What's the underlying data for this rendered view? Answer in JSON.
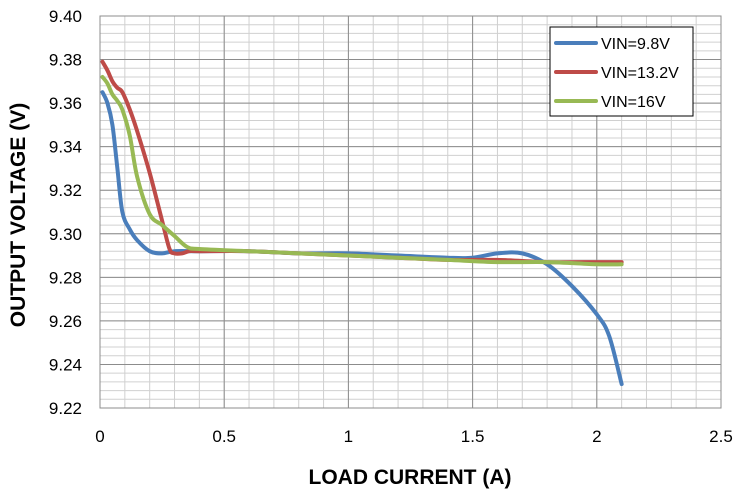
{
  "chart_data": {
    "type": "line",
    "title": "",
    "xlabel": "LOAD CURRENT (A)",
    "ylabel": "OUTPUT VOLTAGE (V)",
    "xlim": [
      0,
      2.5
    ],
    "ylim": [
      9.22,
      9.4
    ],
    "x_ticks": [
      0,
      0.5,
      1,
      1.5,
      2,
      2.5
    ],
    "x_tick_labels": [
      "0",
      "0.5",
      "1",
      "1.5",
      "2",
      "2.5"
    ],
    "y_ticks": [
      9.22,
      9.24,
      9.26,
      9.28,
      9.3,
      9.32,
      9.34,
      9.36,
      9.38,
      9.4
    ],
    "y_tick_labels": [
      "9.22",
      "9.24",
      "9.26",
      "9.28",
      "9.30",
      "9.32",
      "9.34",
      "9.36",
      "9.38",
      "9.40"
    ],
    "x_minor_step": 0.1,
    "y_minor_step": 0.004,
    "grid": true,
    "legend_position": "top-right",
    "series": [
      {
        "name": "VIN=9.8V",
        "color": "#4a7ebb",
        "x": [
          0.01,
          0.03,
          0.05,
          0.07,
          0.09,
          0.12,
          0.15,
          0.2,
          0.25,
          0.3,
          0.4,
          0.6,
          0.8,
          1.0,
          1.2,
          1.4,
          1.5,
          1.6,
          1.7,
          1.8,
          1.9,
          2.0,
          2.05,
          2.1
        ],
        "values": [
          9.365,
          9.36,
          9.35,
          9.33,
          9.31,
          9.302,
          9.297,
          9.292,
          9.291,
          9.292,
          9.292,
          9.292,
          9.291,
          9.291,
          9.29,
          9.289,
          9.289,
          9.291,
          9.291,
          9.286,
          9.276,
          9.263,
          9.253,
          9.231
        ]
      },
      {
        "name": "VIN=13.2V",
        "color": "#be4b48",
        "x": [
          0.01,
          0.03,
          0.05,
          0.07,
          0.09,
          0.12,
          0.15,
          0.2,
          0.25,
          0.28,
          0.3,
          0.33,
          0.36,
          0.4,
          0.6,
          0.8,
          1.0,
          1.2,
          1.4,
          1.6,
          1.8,
          2.0,
          2.1
        ],
        "values": [
          9.379,
          9.375,
          9.37,
          9.367,
          9.365,
          9.357,
          9.347,
          9.328,
          9.306,
          9.293,
          9.291,
          9.291,
          9.292,
          9.292,
          9.292,
          9.291,
          9.29,
          9.289,
          9.288,
          9.288,
          9.287,
          9.287,
          9.287
        ]
      },
      {
        "name": "VIN=16V",
        "color": "#98b954",
        "x": [
          0.01,
          0.03,
          0.05,
          0.07,
          0.09,
          0.12,
          0.15,
          0.2,
          0.25,
          0.3,
          0.35,
          0.4,
          0.6,
          0.8,
          1.0,
          1.2,
          1.4,
          1.6,
          1.8,
          2.0,
          2.1
        ],
        "values": [
          9.372,
          9.369,
          9.364,
          9.361,
          9.357,
          9.345,
          9.326,
          9.309,
          9.304,
          9.299,
          9.294,
          9.293,
          9.292,
          9.291,
          9.29,
          9.289,
          9.288,
          9.287,
          9.287,
          9.286,
          9.286
        ]
      }
    ]
  }
}
